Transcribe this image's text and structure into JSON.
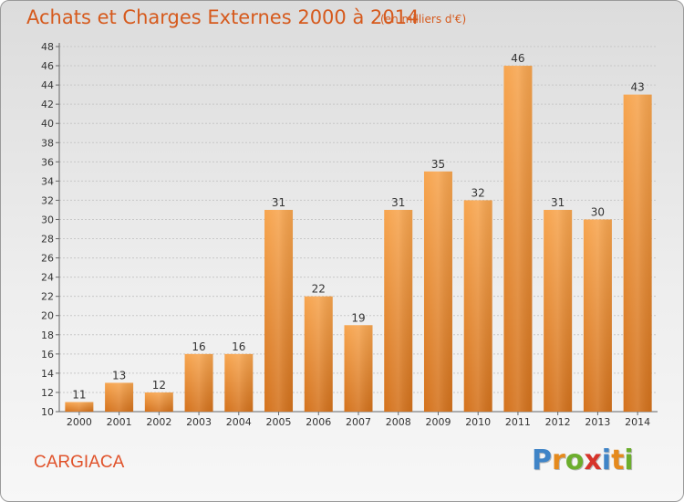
{
  "header": {
    "title": "Achats et Charges Externes 2000 à 2014",
    "subtitle": "(en milliers d'€)"
  },
  "footer": {
    "commune": "CARGIACA",
    "logo_text": "Proxiti"
  },
  "colors": {
    "bar_light": "#f7a54f",
    "bar_dark": "#d4721c",
    "title": "#d65a1d",
    "logo": [
      "#3f84c7",
      "#e58a1d",
      "#6cae2d",
      "#d6342b",
      "#3f84c7",
      "#e58a1d",
      "#6cae2d"
    ]
  },
  "chart_data": {
    "type": "bar",
    "title": "Achats et Charges Externes 2000 à 2014",
    "subtitle": "(en milliers d'€)",
    "categories": [
      "2000",
      "2001",
      "2002",
      "2003",
      "2004",
      "2005",
      "2006",
      "2007",
      "2008",
      "2009",
      "2010",
      "2011",
      "2012",
      "2013",
      "2014"
    ],
    "values": [
      11,
      13,
      12,
      16,
      16,
      31,
      22,
      19,
      31,
      35,
      32,
      46,
      31,
      30,
      43
    ],
    "yticks": [
      10,
      12,
      14,
      16,
      18,
      20,
      22,
      24,
      26,
      28,
      30,
      32,
      34,
      36,
      38,
      40,
      42,
      44,
      46,
      48
    ],
    "ylim": [
      10,
      48
    ],
    "grid": true,
    "legend": "none"
  }
}
